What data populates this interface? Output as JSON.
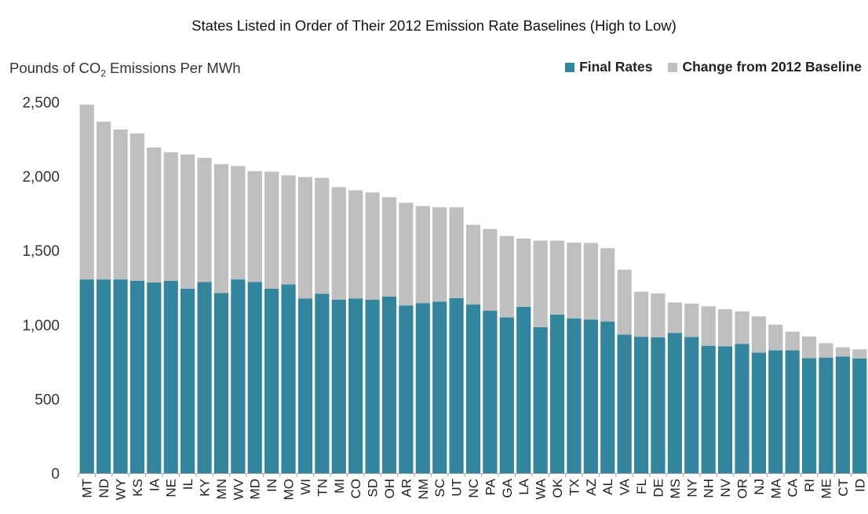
{
  "chart_data": {
    "type": "bar",
    "stacked": true,
    "title": "States Listed in Order of Their 2012 Emission Rate Baselines (High to Low)",
    "ylabel_prefix": "Pounds of CO",
    "ylabel_sub": "2",
    "ylabel_suffix": " Emissions Per MWh",
    "ylim": [
      0,
      2500
    ],
    "yticks": [
      0,
      500,
      1000,
      1500,
      2000,
      2500
    ],
    "ytick_labels": [
      "0",
      "500",
      "1,000",
      "1,500",
      "2,000",
      "2,500"
    ],
    "grid": false,
    "legend_position": "top-right",
    "colors": {
      "final": "#31859c",
      "change": "#bfbfbf"
    },
    "categories": [
      "MT",
      "ND",
      "WY",
      "KS",
      "IA",
      "NE",
      "IL",
      "KY",
      "MN",
      "WV",
      "MD",
      "IN",
      "MO",
      "WI",
      "TN",
      "MI",
      "CO",
      "SD",
      "OH",
      "AR",
      "NM",
      "SC",
      "UT",
      "NC",
      "PA",
      "GA",
      "LA",
      "WA",
      "OK",
      "TX",
      "AZ",
      "AL",
      "VA",
      "FL",
      "DE",
      "MS",
      "NY",
      "NH",
      "NV",
      "OR",
      "NJ",
      "MA",
      "CA",
      "RI",
      "ME",
      "CT",
      "ID"
    ],
    "series": [
      {
        "name": "Final Rates",
        "values": [
          1305,
          1305,
          1305,
          1296,
          1285,
          1296,
          1243,
          1288,
          1213,
          1305,
          1288,
          1243,
          1271,
          1176,
          1209,
          1169,
          1176,
          1169,
          1190,
          1130,
          1146,
          1156,
          1179,
          1136,
          1095,
          1049,
          1121,
          983,
          1068,
          1043,
          1035,
          1022,
          934,
          919,
          916,
          945,
          918,
          858,
          855,
          871,
          812,
          828,
          828,
          775,
          779,
          786,
          773
        ]
      },
      {
        "name": "Change from 2012 Baseline",
        "values": [
          1177,
          1063,
          1010,
          992,
          909,
          866,
          904,
          836,
          868,
          764,
          746,
          788,
          735,
          818,
          780,
          758,
          729,
          722,
          669,
          691,
          653,
          635,
          612,
          537,
          550,
          549,
          460,
          583,
          498,
          510,
          516,
          494,
          437,
          303,
          295,
          205,
          224,
          266,
          249,
          219,
          244,
          173,
          125,
          146,
          97,
          62,
          61
        ]
      }
    ]
  }
}
